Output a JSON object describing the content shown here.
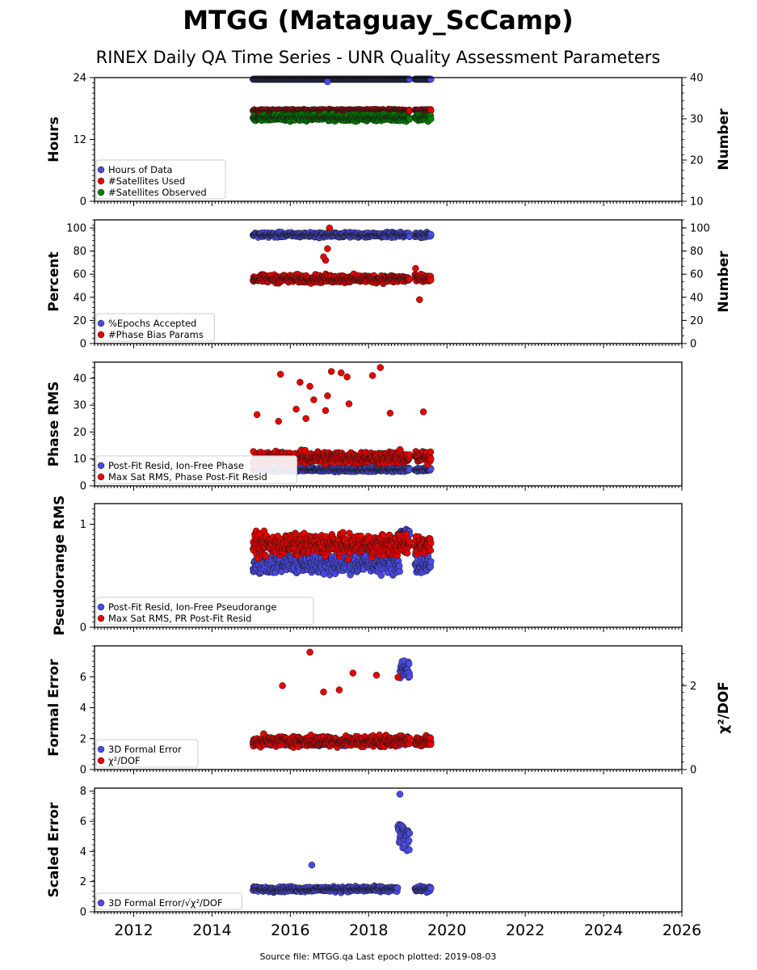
{
  "title": "MTGG (Mataguay_ScCamp)",
  "subtitle": "RINEX Daily QA Time Series - UNR Quality Assessment Parameters",
  "footer": "Source file: MTGG.qa Last epoch plotted: 2019-08-03",
  "colors": {
    "blue": "#4a4ae6",
    "red": "#e60000",
    "green": "#008000",
    "dark_blue": "#1e1e7a"
  },
  "chart_data": [
    {
      "type": "scatter",
      "ylabel": "Hours",
      "ylabel_right": "Number",
      "xlim": [
        2011.0,
        2026.0
      ],
      "ylim": [
        0,
        24
      ],
      "ylim_right": [
        10,
        40
      ],
      "yticks": [
        "0",
        "12",
        "24"
      ],
      "yticks_right": [
        "10",
        "20",
        "30",
        "40"
      ],
      "legend_placement": "lower-left",
      "series": [
        {
          "name": "Hours of Data",
          "axis": "left",
          "color": "blue",
          "x_range": [
            2015.05,
            2019.59
          ],
          "y_center": 24.0,
          "y_spread": 0.3,
          "outliers": [
            [
              2016.95,
              23.2
            ]
          ]
        },
        {
          "name": "#Satellites Used",
          "axis": "right",
          "color": "red",
          "x_range": [
            2015.05,
            2019.59
          ],
          "y_center": 32.0,
          "y_spread": 0.4
        },
        {
          "name": "#Satellites Observed",
          "axis": "right",
          "color": "green",
          "x_range": [
            2015.05,
            2019.59
          ],
          "y_center": 30.3,
          "y_spread": 1.1
        }
      ]
    },
    {
      "type": "scatter",
      "ylabel": "Percent",
      "ylabel_right": "Number",
      "xlim": [
        2011.0,
        2026.0
      ],
      "ylim": [
        0,
        107
      ],
      "ylim_right": [
        0,
        107
      ],
      "yticks": [
        "0",
        "20",
        "40",
        "60",
        "80",
        "100"
      ],
      "yticks_right": [
        "0",
        "20",
        "40",
        "60",
        "80",
        "100"
      ],
      "legend_placement": "lower-left",
      "series": [
        {
          "name": "%Epochs Accepted",
          "axis": "left",
          "color": "blue",
          "x_range": [
            2015.05,
            2019.59
          ],
          "y_center": 94,
          "y_spread": 3
        },
        {
          "name": "#Phase Bias Params",
          "axis": "right",
          "color": "red",
          "x_range": [
            2015.05,
            2019.59
          ],
          "y_center": 56,
          "y_spread": 5,
          "outliers": [
            [
              2016.9,
              72
            ],
            [
              2016.95,
              82
            ],
            [
              2017.0,
              100
            ],
            [
              2016.85,
              75
            ],
            [
              2019.3,
              38
            ],
            [
              2019.2,
              65
            ]
          ]
        }
      ]
    },
    {
      "type": "scatter",
      "ylabel": "Phase RMS",
      "xlim": [
        2011.0,
        2026.0
      ],
      "ylim": [
        0,
        46
      ],
      "yticks": [
        "0",
        "10",
        "20",
        "30",
        "40"
      ],
      "legend_placement": "lower-left",
      "series": [
        {
          "name": "Post-Fit Resid, Ion-Free Phase",
          "axis": "left",
          "color": "blue",
          "x_range": [
            2015.05,
            2019.59
          ],
          "y_center": 6.0,
          "y_spread": 1.0
        },
        {
          "name": "Max Sat RMS, Phase Post-Fit Resid",
          "axis": "left",
          "color": "red",
          "x_range": [
            2015.05,
            2019.59
          ],
          "y_center": 10.5,
          "y_spread": 3.5,
          "outliers": [
            [
              2015.75,
              41.5
            ],
            [
              2016.25,
              38.5
            ],
            [
              2016.5,
              37
            ],
            [
              2016.6,
              32
            ],
            [
              2017.05,
              42.5
            ],
            [
              2017.3,
              42
            ],
            [
              2017.45,
              40.5
            ],
            [
              2018.1,
              41
            ],
            [
              2018.3,
              44
            ],
            [
              2017.5,
              30.5
            ],
            [
              2016.95,
              33.5
            ],
            [
              2016.4,
              25
            ],
            [
              2015.15,
              26.5
            ],
            [
              2016.9,
              28
            ],
            [
              2018.55,
              27
            ],
            [
              2019.4,
              27.5
            ],
            [
              2016.15,
              28.5
            ],
            [
              2015.7,
              24
            ]
          ]
        }
      ]
    },
    {
      "type": "scatter",
      "ylabel": "Pseudorange RMS",
      "xlim": [
        2011.0,
        2026.0
      ],
      "ylim": [
        0,
        1.2
      ],
      "yticks": [
        "0",
        "1"
      ],
      "legend_placement": "lower-left",
      "series": [
        {
          "name": "Post-Fit Resid, Ion-Free Pseudorange",
          "axis": "left",
          "color": "blue",
          "x_range": [
            2015.05,
            2019.59
          ],
          "y_center": 0.62,
          "y_spread": 0.15,
          "high_block": [
            2018.8,
            2019.1,
            0.92,
            0.05
          ]
        },
        {
          "name": "Max Sat RMS, PR Post-Fit Resid",
          "axis": "left",
          "color": "red",
          "x_range": [
            2015.05,
            2019.59
          ],
          "y_center": 0.8,
          "y_spread": 0.15
        }
      ]
    },
    {
      "type": "scatter",
      "ylabel": "Formal Error",
      "ylabel_right": "χ²/DOF",
      "xlim": [
        2011.0,
        2026.0
      ],
      "ylim": [
        0,
        8
      ],
      "ylim_right": [
        0,
        2.95
      ],
      "yticks": [
        "0",
        "2",
        "4",
        "6"
      ],
      "yticks_right": [
        "0",
        "2"
      ],
      "legend_placement": "lower-left",
      "series": [
        {
          "name": "3D Formal Error",
          "axis": "left",
          "color": "blue",
          "x_range": [
            2015.05,
            2019.59
          ],
          "y_center": 1.7,
          "y_spread": 0.2,
          "high_block": [
            2018.8,
            2019.15,
            6.5,
            0.9
          ]
        },
        {
          "name": "χ²/DOF",
          "axis": "right",
          "color": "red",
          "x_range": [
            2015.05,
            2019.59
          ],
          "y_center": 0.68,
          "y_spread": 0.18,
          "outliers": [
            [
              2016.5,
              2.8
            ],
            [
              2015.8,
              2.0
            ],
            [
              2017.6,
              2.3
            ],
            [
              2018.2,
              2.25
            ],
            [
              2018.75,
              2.2
            ],
            [
              2016.85,
              1.85
            ],
            [
              2017.25,
              1.9
            ]
          ]
        }
      ]
    },
    {
      "type": "scatter",
      "ylabel": "Scaled Error",
      "xlim": [
        2011.0,
        2026.0
      ],
      "ylim": [
        0,
        8.2
      ],
      "yticks": [
        "0",
        "2",
        "4",
        "6",
        "8"
      ],
      "xticks": [
        "2012",
        "2014",
        "2016",
        "2018",
        "2020",
        "2022",
        "2024",
        "2026"
      ],
      "legend_placement": "lower-left",
      "series": [
        {
          "name": "3D Formal Error/√χ²/DOF",
          "axis": "left",
          "color": "blue",
          "x_range": [
            2015.05,
            2019.59
          ],
          "y_center": 1.5,
          "y_spread": 0.25,
          "high_block": [
            2018.75,
            2019.15,
            5.0,
            1.2
          ],
          "outliers": [
            [
              2018.8,
              7.8
            ],
            [
              2016.55,
              3.1
            ]
          ]
        }
      ]
    }
  ]
}
